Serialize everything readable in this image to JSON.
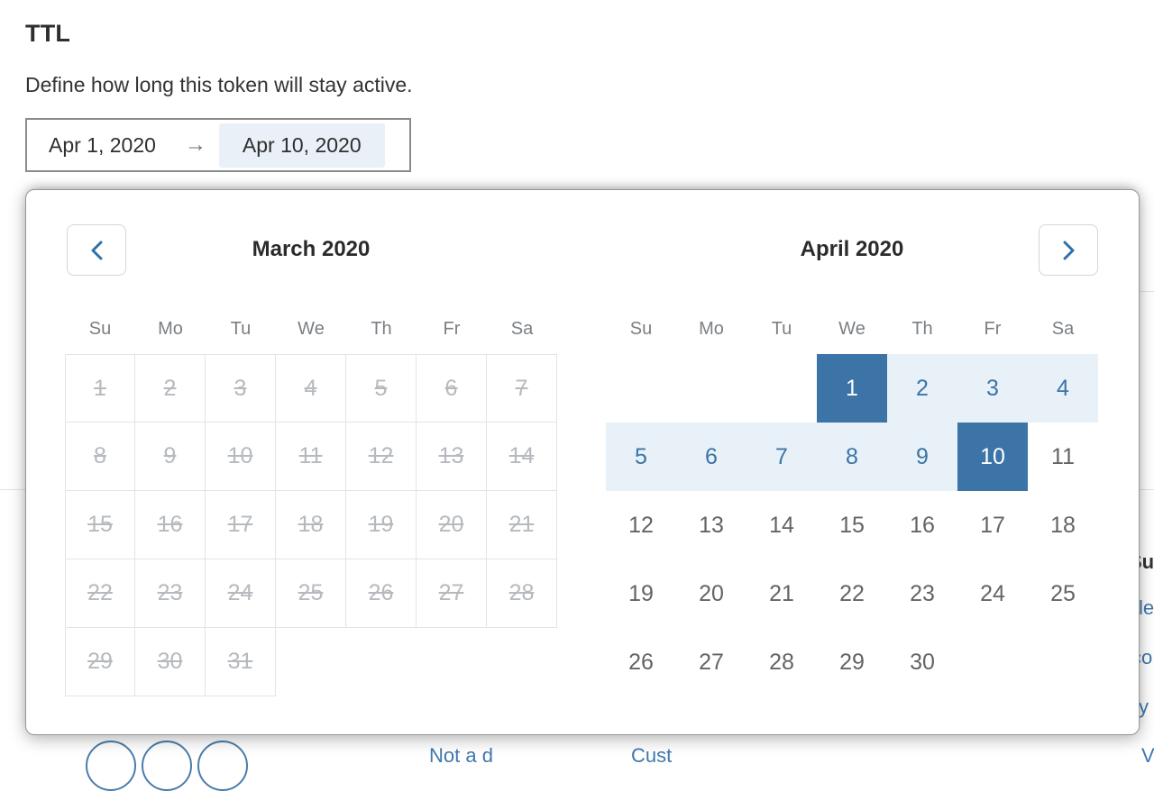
{
  "page": {
    "title": "TTL",
    "description": "Define how long this token will stay active."
  },
  "date_range_input": {
    "start_value": "Apr 1, 2020",
    "arrow": "→",
    "end_value": "Apr 10, 2020"
  },
  "calendar": {
    "weekdays": [
      "Su",
      "Mo",
      "Tu",
      "We",
      "Th",
      "Fr",
      "Sa"
    ],
    "nav": {
      "prev_icon": "chevron-left",
      "next_icon": "chevron-right"
    },
    "selected_range": {
      "start_label": "Apr 1, 2020",
      "end_label": "Apr 10, 2020"
    },
    "months": [
      {
        "title": "March 2020",
        "disabled": true,
        "bordered": true,
        "weeks": [
          [
            1,
            2,
            3,
            4,
            5,
            6,
            7
          ],
          [
            8,
            9,
            10,
            11,
            12,
            13,
            14
          ],
          [
            15,
            16,
            17,
            18,
            19,
            20,
            21
          ],
          [
            22,
            23,
            24,
            25,
            26,
            27,
            28
          ],
          [
            29,
            30,
            31,
            0,
            0,
            0,
            0
          ]
        ],
        "states": {}
      },
      {
        "title": "April 2020",
        "disabled": false,
        "bordered": false,
        "weeks": [
          [
            0,
            0,
            0,
            1,
            2,
            3,
            4
          ],
          [
            5,
            6,
            7,
            8,
            9,
            10,
            11
          ],
          [
            12,
            13,
            14,
            15,
            16,
            17,
            18
          ],
          [
            19,
            20,
            21,
            22,
            23,
            24,
            25
          ],
          [
            26,
            27,
            28,
            29,
            30,
            0,
            0
          ]
        ],
        "states": {
          "1": "start",
          "2": "range",
          "3": "range",
          "4": "range",
          "5": "range",
          "6": "range",
          "7": "range",
          "8": "range",
          "9": "range",
          "10": "end"
        }
      }
    ]
  },
  "colors": {
    "selected_bg": "#3d74a8",
    "range_bg": "#e8f0f8",
    "range_text": "#3b74a7",
    "disabled_text": "#b6babe",
    "chip_bg": "#e9f0f8"
  },
  "background_fragments": {
    "heading_fragment": "Su",
    "side_link_1": "le",
    "side_link_2": "co",
    "side_link_3": "y",
    "bottom_link_1": "Not a d",
    "bottom_link_2": "Cust",
    "bottom_link_3": "Vi"
  }
}
